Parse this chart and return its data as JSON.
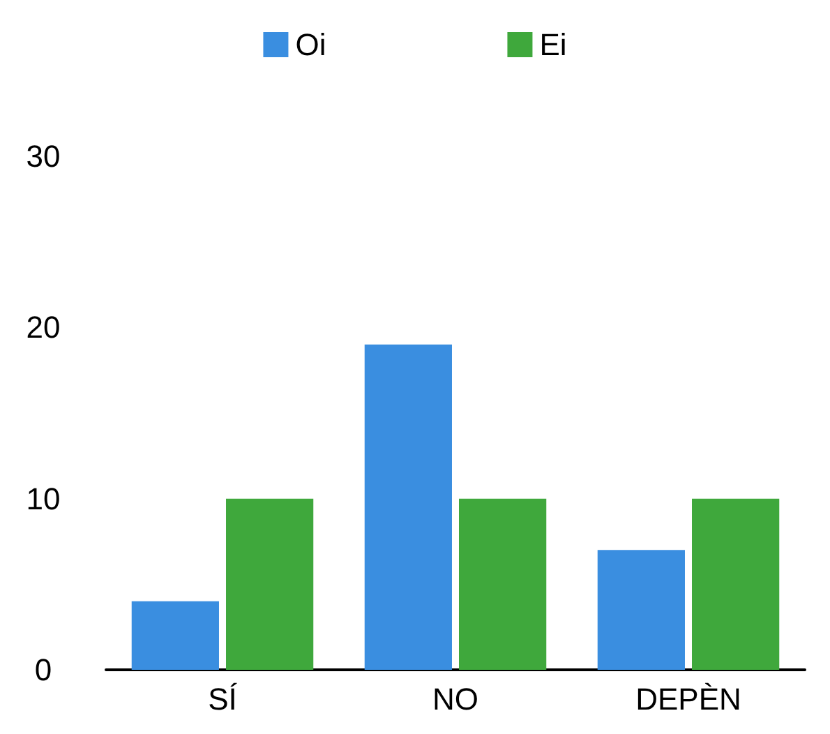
{
  "chart_data": {
    "type": "bar",
    "categories": [
      "SÍ",
      "NO",
      "DEPÈN"
    ],
    "series": [
      {
        "name": "Oi",
        "color": "#3a8ee0",
        "values": [
          4,
          19,
          7
        ]
      },
      {
        "name": "Ei",
        "color": "#3fa83c",
        "values": [
          10,
          10,
          10
        ]
      }
    ],
    "ylim": [
      0,
      30
    ],
    "yticks": [
      0,
      10,
      20,
      30
    ],
    "grid": false,
    "legend": "top"
  }
}
